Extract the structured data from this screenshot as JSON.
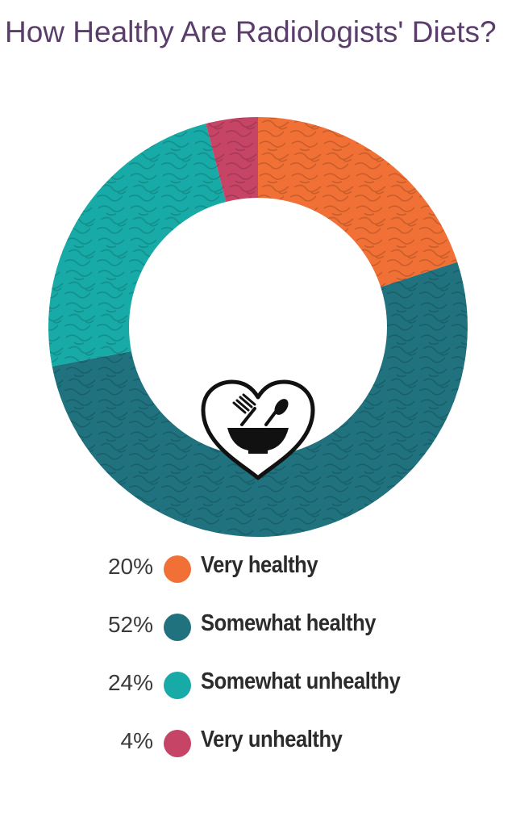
{
  "chart_data": {
    "type": "pie",
    "title": "How Healthy Are Radiologists' Diets?",
    "categories": [
      "Very healthy",
      "Somewhat healthy",
      "Somewhat unhealthy",
      "Very unhealthy"
    ],
    "values": [
      20,
      52,
      24,
      4
    ],
    "value_labels": [
      "20%",
      "52%",
      "24%",
      "4%"
    ],
    "colors": [
      "#f07035",
      "#1f727e",
      "#18aaa6",
      "#c64466"
    ],
    "legend_position": "bottom",
    "center_icon": "heart-bowl-utensils-icon"
  }
}
